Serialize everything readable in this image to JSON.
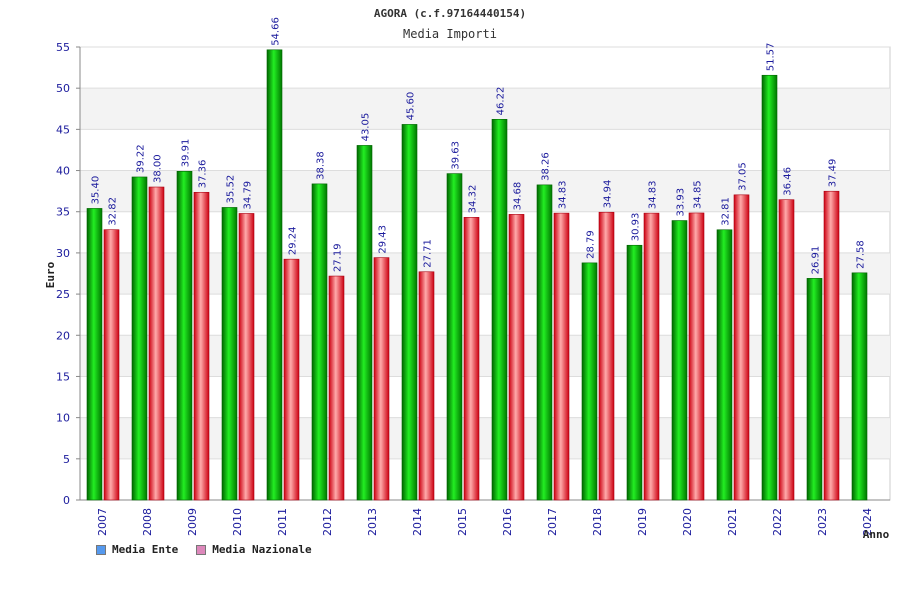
{
  "chart_data": {
    "type": "bar",
    "title": "AGORA (c.f.97164440154)",
    "subtitle": "Media Importi",
    "ylabel": "Euro",
    "xlabel": "Anno",
    "ylim": [
      0,
      55
    ],
    "yticks": [
      0,
      5,
      10,
      15,
      20,
      25,
      30,
      35,
      40,
      45,
      50,
      55
    ],
    "grid": true,
    "legend_position": "bottom-left",
    "categories": [
      "2007",
      "2008",
      "2009",
      "2010",
      "2011",
      "2012",
      "2013",
      "2014",
      "2015",
      "2016",
      "2017",
      "2018",
      "2019",
      "2020",
      "2021",
      "2022",
      "2023",
      "2024"
    ],
    "series": [
      {
        "name": "Media Ente",
        "color": "#00aa00",
        "legend_color": "#5599ee",
        "values": [
          35.4,
          39.22,
          39.91,
          35.52,
          54.66,
          38.38,
          43.05,
          45.6,
          39.63,
          46.22,
          38.26,
          28.79,
          30.93,
          33.93,
          32.81,
          51.57,
          26.91,
          27.58
        ],
        "labels": [
          "35.40",
          "39.22",
          "39.91",
          "35.52",
          "54.66",
          "38.38",
          "43.05",
          "45.60",
          "39.63",
          "46.22",
          "38.26",
          "28.79",
          "30.93",
          "33.93",
          "32.81",
          "51.57",
          "26.91",
          "27.58"
        ]
      },
      {
        "name": "Media Nazionale",
        "color": "#ee2233",
        "legend_color": "#dd88bb",
        "values": [
          32.82,
          38.0,
          37.36,
          34.79,
          29.24,
          27.19,
          29.43,
          27.71,
          34.32,
          34.68,
          34.83,
          34.94,
          34.83,
          34.85,
          37.05,
          36.46,
          37.49,
          null
        ],
        "labels": [
          "32.82",
          "38.00",
          "37.36",
          "34.79",
          "29.24",
          "27.19",
          "29.43",
          "27.71",
          "34.32",
          "34.68",
          "34.83",
          "34.94",
          "34.83",
          "34.85",
          "37.05",
          "36.46",
          "37.49",
          ""
        ]
      }
    ]
  }
}
